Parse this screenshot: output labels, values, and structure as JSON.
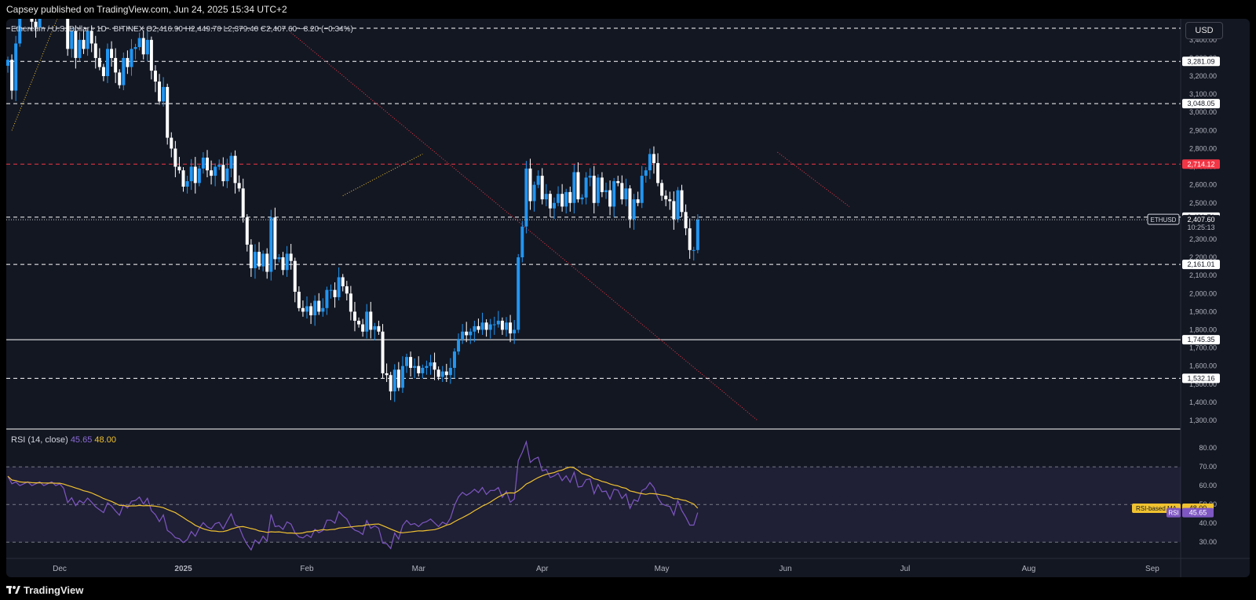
{
  "header": {
    "published": "Capsey published on TradingView.com, Jun 24, 2025 15:34 UTC+2"
  },
  "footer": {
    "brand": "TradingView"
  },
  "legend": {
    "text": "Ethereum / U.S. Dollar · 1D · BITINEX  O2,416.90  H2,449.70  L2,379.40  C2,407.60  −8.20 (−0.34%)"
  },
  "currency_button": "USD",
  "rsi_legend": {
    "label": "RSI (14, close)",
    "rsi": "45.65",
    "ma": "48.00"
  },
  "colors": {
    "bg": "#131722",
    "up": "#2196f3",
    "down": "#ffffff",
    "rsi": "#7e57c2",
    "rsi_ma": "#f0c230",
    "red_level": "#f23645"
  },
  "chart_data": [
    {
      "type": "candlestick",
      "title": "Ethereum / U.S. Dollar",
      "symbol": "ETHUSD",
      "timeframe": "1D",
      "y_ticks": [
        "3,400.00",
        "3,300.00",
        "3,200.00",
        "3,100.00",
        "3,000.00",
        "2,900.00",
        "2,800.00",
        "2,700.00",
        "2,600.00",
        "2,500.00",
        "2,400.00",
        "2,300.00",
        "2,200.00",
        "2,100.00",
        "2,000.00",
        "1,900.00",
        "1,800.00",
        "1,700.00",
        "1,600.00",
        "1,500.00",
        "1,400.00",
        "1,300.00"
      ],
      "ylim": [
        1300,
        3460
      ],
      "x_ticks": [
        "Dec",
        "2025",
        "Feb",
        "Mar",
        "Apr",
        "May",
        "Jun",
        "Jul",
        "Aug",
        "Sep"
      ],
      "levels": [
        {
          "value": 3281.09,
          "label": "3,281.09",
          "style": "dashed",
          "color": "#ffffff"
        },
        {
          "value": 3048.05,
          "label": "3,048.05",
          "style": "dashed",
          "color": "#ffffff"
        },
        {
          "value": 2714.12,
          "label": "2,714.12",
          "style": "dashed",
          "color": "#f23645"
        },
        {
          "value": 2421.71,
          "label": "2,421.71",
          "style": "dashed",
          "color": "#ffffff"
        },
        {
          "value": 2161.01,
          "label": "2,161.01",
          "style": "dashed",
          "color": "#ffffff"
        },
        {
          "value": 1745.35,
          "label": "1,745.35",
          "style": "solid",
          "color": "#ffffff"
        },
        {
          "value": 1532.16,
          "label": "1,532.16",
          "style": "dashed",
          "color": "#ffffff"
        }
      ],
      "last_price": {
        "value": 2407.6,
        "label": "2,407.60",
        "countdown": "10:25:13",
        "symbol": "ETHUSD"
      },
      "closes": [
        3290,
        3120,
        3380,
        3600,
        3560,
        3610,
        3500,
        3470,
        3700,
        3850,
        3900,
        4000,
        3950,
        3700,
        3600,
        3350,
        3450,
        3300,
        3400,
        3350,
        3450,
        3380,
        3300,
        3250,
        3200,
        3350,
        3300,
        3220,
        3150,
        3300,
        3250,
        3350,
        3360,
        3410,
        3320,
        3400,
        3230,
        3170,
        3060,
        3140,
        2860,
        2800,
        2700,
        2680,
        2590,
        2620,
        2700,
        2610,
        2690,
        2750,
        2680,
        2650,
        2700,
        2710,
        2620,
        2690,
        2760,
        2610,
        2580,
        2420,
        2270,
        2140,
        2230,
        2150,
        2220,
        2120,
        2420,
        2190,
        2200,
        2130,
        2220,
        2180,
        2010,
        1920,
        1900,
        1930,
        1880,
        1960,
        1900,
        1920,
        2020,
        2020,
        1980,
        2090,
        2040,
        2000,
        1900,
        1850,
        1830,
        1790,
        1900,
        1800,
        1820,
        1790,
        1560,
        1550,
        1460,
        1580,
        1480,
        1600,
        1650,
        1590,
        1600,
        1560,
        1590,
        1600,
        1620,
        1580,
        1540,
        1570,
        1550,
        1590,
        1680,
        1750,
        1790,
        1770,
        1790,
        1820,
        1800,
        1840,
        1800,
        1830,
        1830,
        1850,
        1800,
        1840,
        1780,
        1800,
        2200,
        2370,
        2690,
        2510,
        2600,
        2650,
        2520,
        2550,
        2470,
        2500,
        2550,
        2480,
        2560,
        2500,
        2670,
        2520,
        2530,
        2640,
        2650,
        2500,
        2640,
        2560,
        2570,
        2480,
        2620,
        2610,
        2520,
        2580,
        2410,
        2520,
        2500,
        2650,
        2680,
        2770,
        2720,
        2610,
        2540,
        2520,
        2510,
        2410,
        2570,
        2450,
        2360,
        2240,
        2240,
        2407.6
      ],
      "trendlines": [
        {
          "from": [
            "2024-11-19",
            2900
          ],
          "to": [
            "2024-12-03",
            3660
          ],
          "style": "dotted",
          "color": "#f0c230"
        },
        {
          "from": [
            "2025-02-10",
            2540
          ],
          "to": [
            "2025-03-02",
            2770
          ],
          "style": "dotted",
          "color": "#f0c230"
        },
        {
          "from": [
            "2025-01-28",
            3440
          ],
          "to": [
            "2025-05-25",
            1300
          ],
          "style": "dotted",
          "color": "#f23645"
        },
        {
          "from": [
            "2025-05-30",
            2780
          ],
          "to": [
            "2025-06-17",
            2480
          ],
          "style": "dotted",
          "color": "#f23645"
        }
      ]
    },
    {
      "type": "line",
      "title": "RSI (14, close)",
      "series": [
        {
          "name": "RSI",
          "color": "#7e57c2",
          "last": 45.65
        },
        {
          "name": "RSI-based MA",
          "color": "#f0c230",
          "last": 48.0
        }
      ],
      "y_ticks": [
        "80.00",
        "70.00",
        "60.00",
        "50.00",
        "40.00",
        "30.00"
      ],
      "ylim": [
        23,
        88
      ],
      "bands": [
        70,
        50,
        30
      ]
    }
  ]
}
